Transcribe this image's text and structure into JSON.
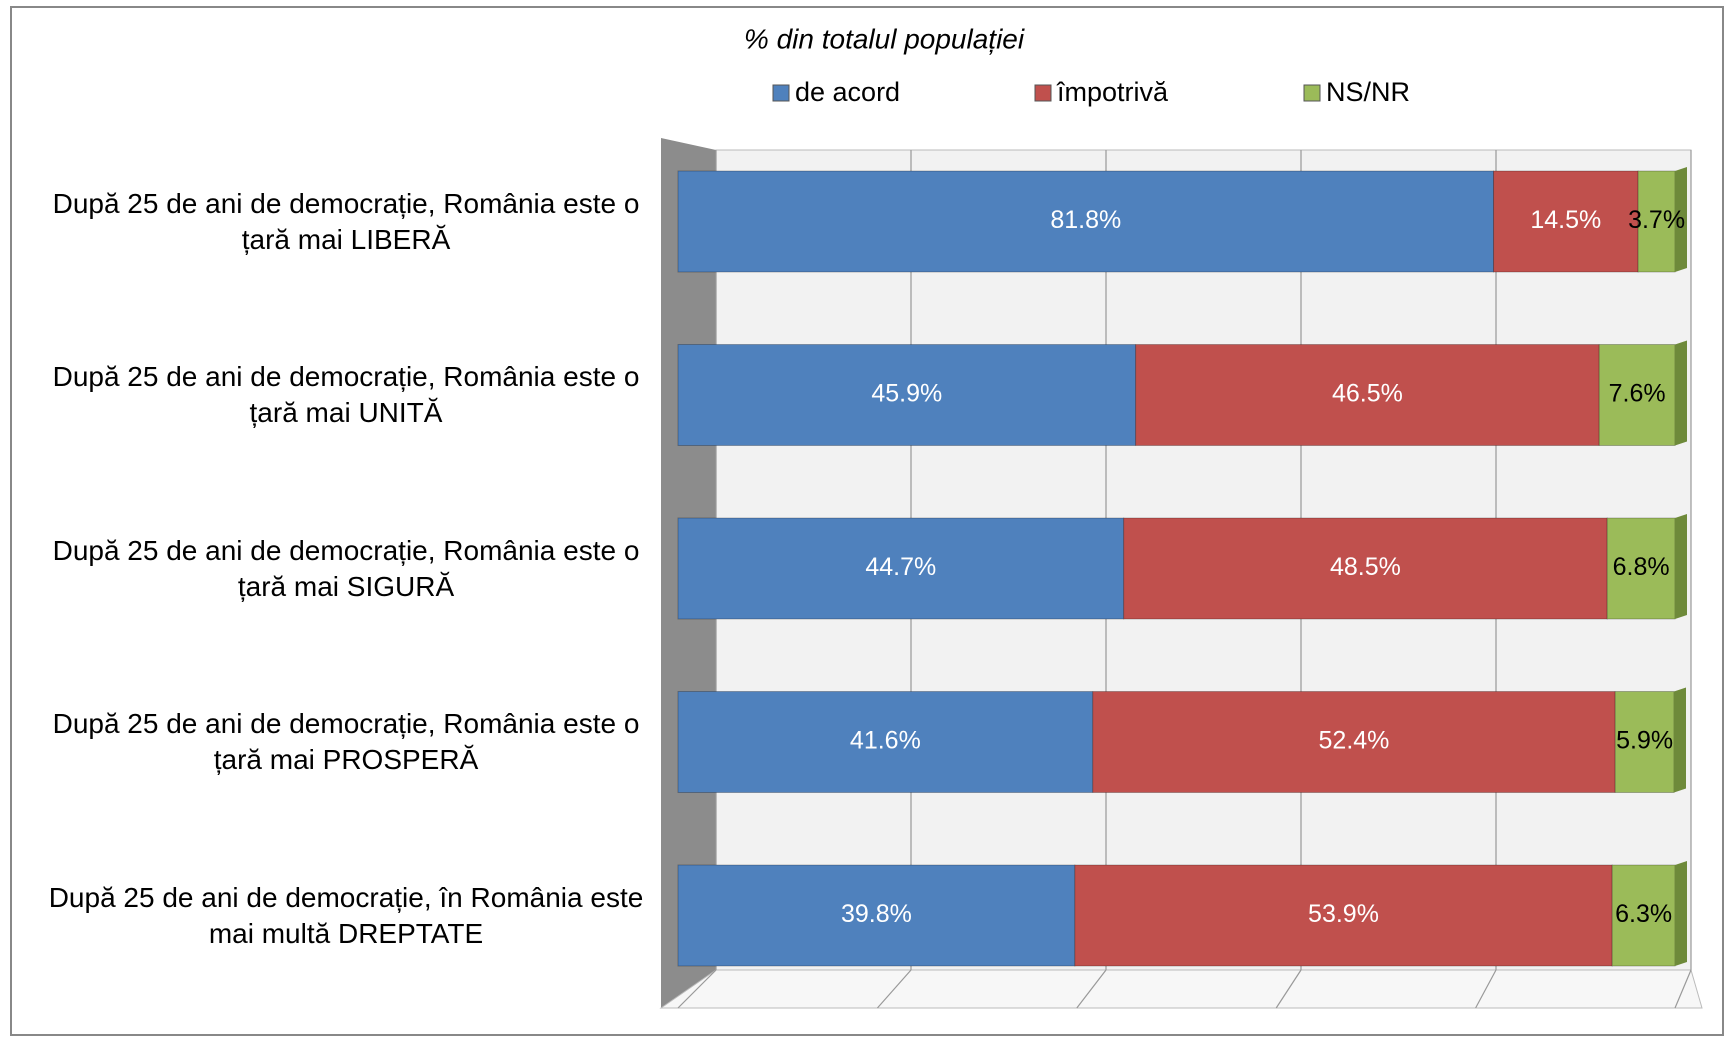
{
  "chart_data": {
    "type": "stacked-bar-horizontal",
    "title": "% din totalul populației",
    "categories": [
      "După 25 de ani de democrație, România este o țară mai LIBERĂ",
      "După 25 de ani de democrație, România este o țară mai UNITĂ",
      "După 25 de ani de democrație, România este o țară mai SIGURĂ",
      "După 25 de ani de democrație, România este o țară mai PROSPERĂ",
      "După 25 de ani de democrație, în România este mai multă DREPTATE"
    ],
    "series": [
      {
        "name": "de acord",
        "color": "#4f81bd",
        "label_color": "#ffffff",
        "values": [
          81.8,
          45.9,
          44.7,
          41.6,
          39.8
        ],
        "value_labels": [
          "81.8%",
          "45.9%",
          "44.7%",
          "41.6%",
          "39.8%"
        ]
      },
      {
        "name": "împotrivă",
        "color": "#c0504d",
        "label_color": "#ffffff",
        "values": [
          14.5,
          46.5,
          48.5,
          52.4,
          53.9
        ],
        "value_labels": [
          "14.5%",
          "46.5%",
          "48.5%",
          "52.4%",
          "53.9%"
        ]
      },
      {
        "name": "NS/NR",
        "color": "#9bbb59",
        "label_color": "#000000",
        "values": [
          3.7,
          7.6,
          6.8,
          5.9,
          6.3
        ],
        "value_labels": [
          "3.7%",
          "7.6%",
          "6.8%",
          "5.9%",
          "6.3%"
        ]
      }
    ],
    "xlim": [
      0,
      100
    ],
    "xticks": [
      0,
      20,
      40,
      60,
      80,
      100
    ],
    "grid": true,
    "legend": "top"
  }
}
